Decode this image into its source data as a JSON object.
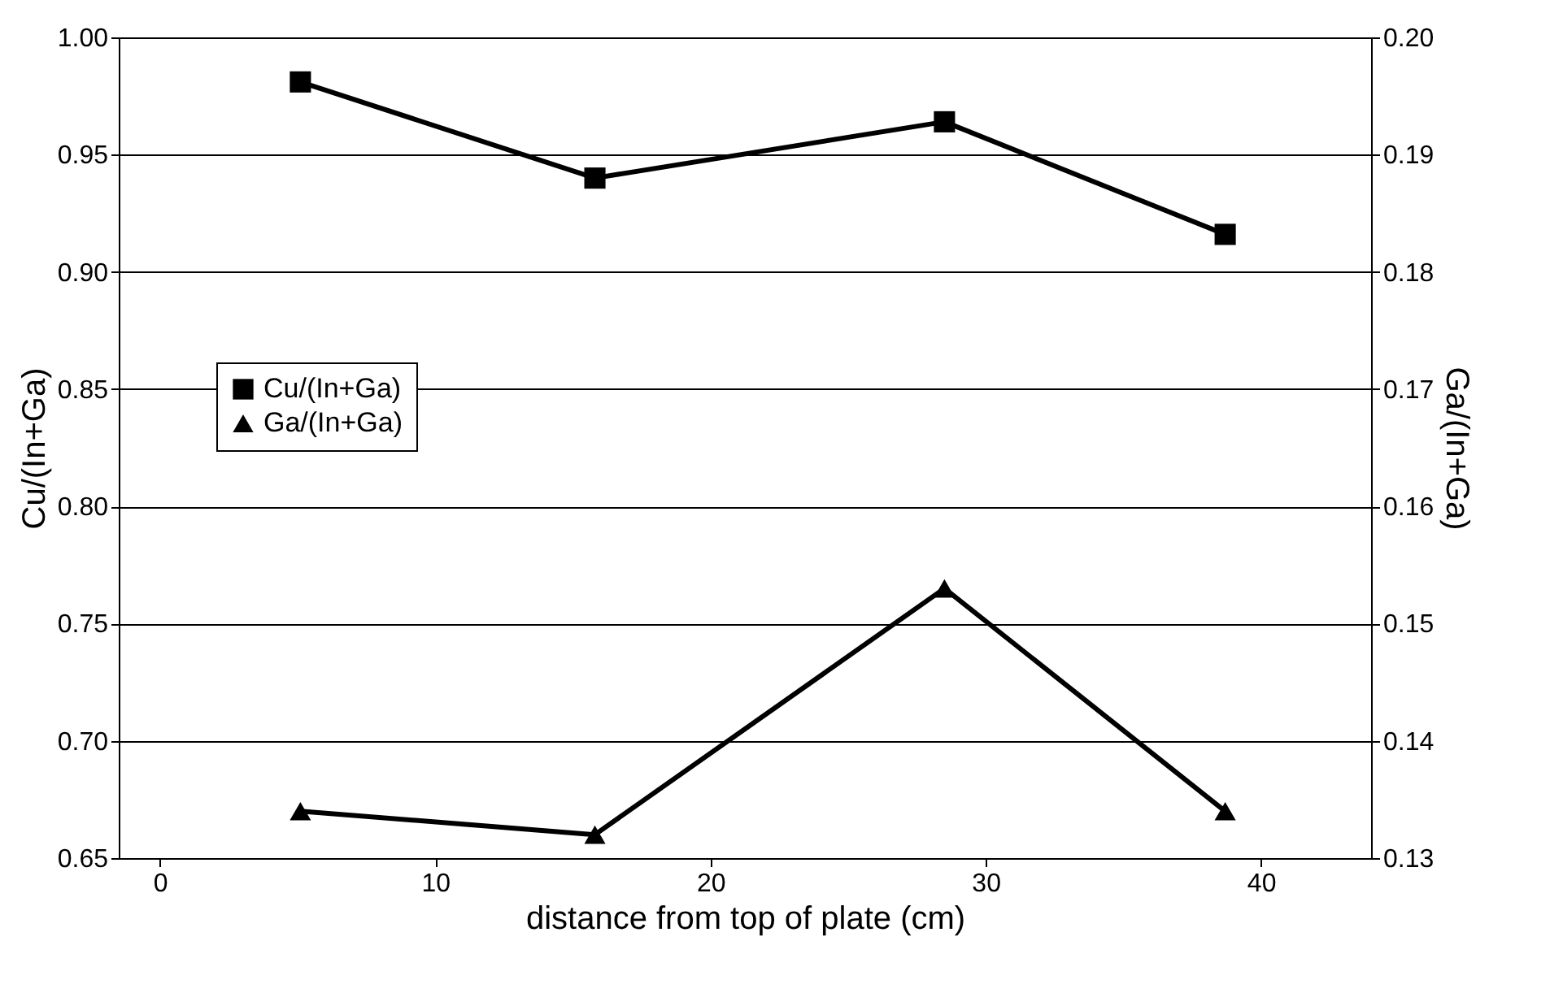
{
  "chart_data": {
    "type": "line",
    "xlabel": "distance from top of plate (cm)",
    "ylabel": "Cu/(In+Ga)",
    "y2label": "Ga/(In+Ga)",
    "x": [
      5.1,
      15.8,
      28.5,
      38.7
    ],
    "series": [
      {
        "name": "Cu/(In+Ga)",
        "color": "#000000",
        "marker": "square",
        "values": [
          0.981,
          0.94,
          0.964,
          0.916
        ]
      },
      {
        "name": "Ga/(In+Ga)",
        "color": "#000000",
        "marker": "triangle",
        "axis": "y2",
        "values": [
          0.134,
          0.132,
          0.153,
          0.134
        ]
      }
    ],
    "xlim": [
      -1.5,
      44
    ],
    "xticks": [
      0,
      10,
      20,
      30,
      40
    ],
    "ylim": [
      0.65,
      1.0
    ],
    "yticks": [
      0.65,
      {
        "value": 0.7,
        "label": "0.70"
      },
      0.75,
      {
        "value": 0.8,
        "label": "0.80"
      },
      0.85,
      {
        "value": 0.9,
        "label": "0.90"
      },
      0.95,
      {
        "value": 1,
        "label": "1.00"
      }
    ],
    "y2lim": [
      0.13,
      0.2
    ],
    "y2ticks": [
      0.13,
      0.14,
      0.15,
      0.16,
      0.17,
      0.18,
      0.19,
      {
        "value": 0.2,
        "label": "0.20"
      }
    ],
    "grid": "y",
    "legend": "left",
    "line_style": "solid"
  }
}
